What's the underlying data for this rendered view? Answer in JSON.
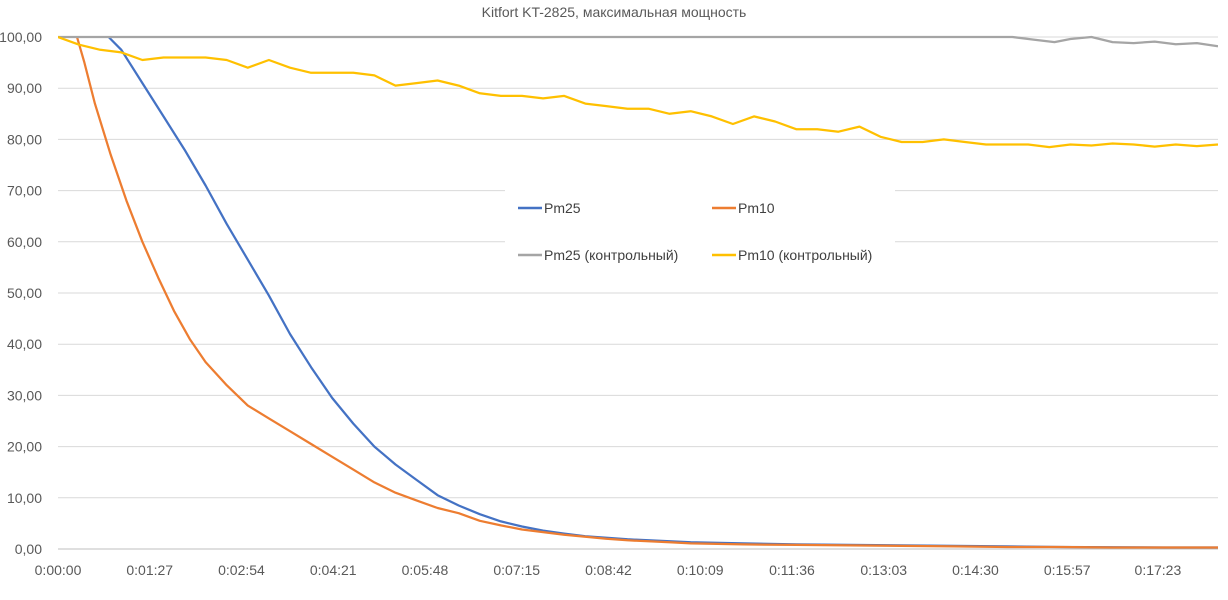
{
  "chart_data": {
    "type": "line",
    "title": "Kitfort KT-2825, максимальная мощность",
    "xlabel": "",
    "ylabel": "",
    "x_ticks": [
      "0:00:00",
      "0:01:27",
      "0:02:54",
      "0:04:21",
      "0:05:48",
      "0:07:15",
      "0:08:42",
      "0:10:09",
      "0:11:36",
      "0:13:03",
      "0:14:30",
      "0:15:57",
      "0:17:23"
    ],
    "x_tick_seconds": [
      0,
      87,
      174,
      261,
      348,
      435,
      522,
      609,
      696,
      783,
      870,
      957,
      1043
    ],
    "xlim": [
      0,
      1100
    ],
    "y_ticks": [
      "0,00",
      "10,00",
      "20,00",
      "30,00",
      "40,00",
      "50,00",
      "60,00",
      "70,00",
      "80,00",
      "90,00",
      "100,00"
    ],
    "ylim": [
      0,
      100
    ],
    "grid": true,
    "legend_position": "center",
    "series": [
      {
        "name": "Pm25",
        "color": "#4472C4",
        "x": [
          48,
          60,
          80,
          100,
          120,
          140,
          160,
          180,
          200,
          220,
          240,
          260,
          280,
          300,
          320,
          340,
          360,
          380,
          400,
          420,
          440,
          460,
          480,
          500,
          520,
          540,
          560,
          580,
          600,
          650,
          700,
          750,
          800,
          850,
          900,
          950,
          1000,
          1050,
          1100
        ],
        "y": [
          100,
          97.5,
          91,
          84.5,
          78,
          71,
          63.5,
          56.5,
          49.5,
          42,
          35.5,
          29.5,
          24.5,
          20,
          16.5,
          13.5,
          10.5,
          8.5,
          6.8,
          5.4,
          4.4,
          3.6,
          3.0,
          2.5,
          2.2,
          1.9,
          1.7,
          1.5,
          1.3,
          1.1,
          0.9,
          0.8,
          0.7,
          0.6,
          0.5,
          0.4,
          0.35,
          0.3,
          0.3
        ]
      },
      {
        "name": "Pm10",
        "color": "#ED7D31",
        "x": [
          18,
          25,
          35,
          50,
          65,
          80,
          95,
          110,
          125,
          140,
          160,
          180,
          200,
          220,
          240,
          260,
          280,
          300,
          320,
          340,
          360,
          380,
          400,
          420,
          440,
          460,
          480,
          500,
          520,
          540,
          560,
          580,
          600,
          650,
          700,
          750,
          800,
          850,
          900,
          950,
          1000,
          1050,
          1100
        ],
        "y": [
          100,
          95,
          87,
          77,
          68,
          60,
          53,
          46.5,
          41,
          36.5,
          32,
          28,
          25.5,
          23,
          20.5,
          18,
          15.5,
          13,
          11,
          9.5,
          8,
          7,
          5.5,
          4.6,
          3.8,
          3.3,
          2.8,
          2.4,
          2.0,
          1.7,
          1.5,
          1.3,
          1.1,
          0.9,
          0.8,
          0.7,
          0.6,
          0.5,
          0.4,
          0.4,
          0.3,
          0.3,
          0.3
        ]
      },
      {
        "name": "Pm25 (контрольный)",
        "color": "#A5A5A5",
        "x": [
          0,
          100,
          200,
          300,
          400,
          500,
          600,
          700,
          800,
          900,
          905,
          925,
          945,
          960,
          980,
          1000,
          1020,
          1040,
          1060,
          1080,
          1100
        ],
        "y": [
          100,
          100,
          100,
          100,
          100,
          100,
          100,
          100,
          100,
          100,
          100,
          99.5,
          99,
          99.6,
          100,
          99,
          98.8,
          99.1,
          98.6,
          98.8,
          98.2
        ]
      },
      {
        "name": "Pm10  (контрольный)",
        "color": "#FFC000",
        "x": [
          0,
          20,
          40,
          60,
          80,
          100,
          120,
          140,
          160,
          180,
          200,
          220,
          240,
          260,
          280,
          300,
          320,
          340,
          360,
          380,
          400,
          420,
          440,
          460,
          480,
          500,
          520,
          540,
          560,
          580,
          600,
          620,
          640,
          660,
          680,
          700,
          720,
          740,
          760,
          780,
          800,
          820,
          840,
          860,
          880,
          900,
          920,
          940,
          960,
          980,
          1000,
          1020,
          1040,
          1060,
          1080,
          1100
        ],
        "y": [
          100,
          98.5,
          97.5,
          97,
          95.5,
          96,
          96,
          96,
          95.5,
          94,
          95.5,
          94,
          93,
          93,
          93,
          92.5,
          90.5,
          91,
          91.5,
          90.5,
          89,
          88.5,
          88.5,
          88,
          88.5,
          87,
          86.5,
          86,
          86,
          85,
          85.5,
          84.5,
          83,
          84.5,
          83.5,
          82,
          82,
          81.5,
          82.5,
          80.5,
          79.5,
          79.5,
          80,
          79.5,
          79,
          79,
          79,
          78.5,
          79,
          78.8,
          79.2,
          79,
          78.6,
          79,
          78.7,
          79
        ]
      }
    ]
  },
  "legend": {
    "items": [
      "Pm25",
      "Pm10",
      "Pm25 (контрольный)",
      "Pm10  (контрольный)"
    ]
  }
}
